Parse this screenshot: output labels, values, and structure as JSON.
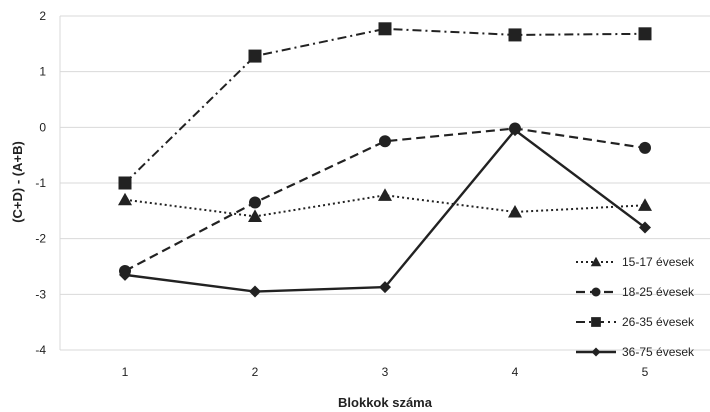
{
  "chart_data": {
    "type": "line",
    "title": "",
    "xlabel": "Blokkok száma",
    "ylabel": "(C+D) - (A+B)",
    "x": [
      "1",
      "2",
      "3",
      "4",
      "5"
    ],
    "ylim": [
      -4,
      2
    ],
    "yticks": [
      "2",
      "1",
      "0",
      "-1",
      "-2",
      "-3",
      "-4"
    ],
    "grid": true,
    "legend_position": "bottom-right",
    "series": [
      {
        "name": "15-17 évesek",
        "values": [
          -1.3,
          -1.6,
          -1.22,
          -1.52,
          -1.4
        ],
        "marker": "triangle",
        "dash": "dotted"
      },
      {
        "name": "18-25 évesek",
        "values": [
          -2.58,
          -1.35,
          -0.25,
          -0.02,
          -0.37
        ],
        "marker": "circle",
        "dash": "dashed"
      },
      {
        "name": "26-35 évesek",
        "values": [
          -1.0,
          1.28,
          1.77,
          1.66,
          1.68
        ],
        "marker": "square",
        "dash": "dashdot"
      },
      {
        "name": "36-75 évesek",
        "values": [
          -2.65,
          -2.95,
          -2.87,
          -0.05,
          -1.8
        ],
        "marker": "diamond",
        "dash": "solid"
      }
    ],
    "colors": {
      "line": "#222222",
      "grid": "#d9d9d9"
    }
  }
}
